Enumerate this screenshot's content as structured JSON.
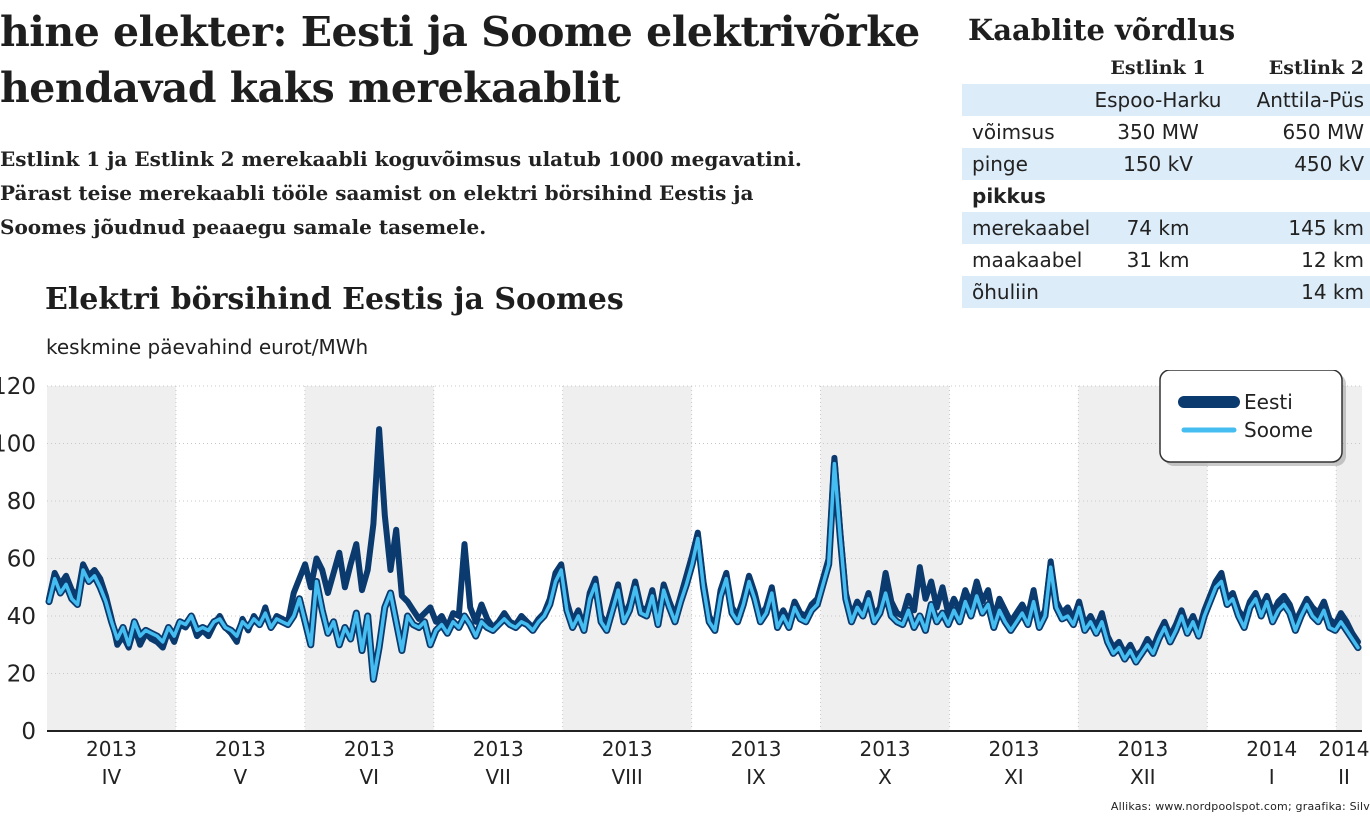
{
  "article": {
    "headline_line1": "hine elekter: Eesti ja Soome elektrivõrke",
    "headline_line2": "hendavad kaks merekaablit",
    "lead_line1": "Estlink 1 ja Estlink 2 merekaabli  koguvõimsus ulatub 1000 megavatini.",
    "lead_line2": "Pärast teise merekaabli tööle saamist on elektri börsihind Eestis ja",
    "lead_line3": "Soomes jõudnud peaaegu samale tasemele."
  },
  "comparison": {
    "title": "Kaablite võrdlus",
    "col_a": "Estlink 1",
    "col_b": "Estlink 2",
    "route_a": "Espoo-Harku",
    "route_b": "Anttila-Püs",
    "rows": [
      {
        "label": "võimsus",
        "a": "350 MW",
        "b": "650 MW"
      },
      {
        "label": "pinge",
        "a": "150 kV",
        "b": "450 kV"
      },
      {
        "label": "pikkus",
        "a": "",
        "b": ""
      },
      {
        "label": "merekaabel",
        "a": "74 km",
        "b": "145 km"
      },
      {
        "label": "maakaabel",
        "a": "31 km",
        "b": "12 km"
      },
      {
        "label": "õhuliin",
        "a": "",
        "b": "14 km"
      }
    ]
  },
  "source": "Allikas: www.nordpoolspot.com; graafika: Silv",
  "colors": {
    "eesti": "#0b3a6e",
    "soome": "#45bdf0",
    "band": "#efefef",
    "outline": "#0b3a6e"
  },
  "chart_data": {
    "type": "line",
    "title": "Elektri börsihind Eestis ja Soomes",
    "ylabel": "keskmine päevahind eurot/MWh",
    "ylim": [
      0,
      120
    ],
    "yticks": [
      "0",
      "20",
      "40",
      "60",
      "80",
      "100",
      "120"
    ],
    "months": [
      {
        "year": "2013",
        "month": "IV"
      },
      {
        "year": "2013",
        "month": "V"
      },
      {
        "year": "2013",
        "month": "VI"
      },
      {
        "year": "2013",
        "month": "VII"
      },
      {
        "year": "2013",
        "month": "VIII"
      },
      {
        "year": "2013",
        "month": "IX"
      },
      {
        "year": "2013",
        "month": "X"
      },
      {
        "year": "2013",
        "month": "XI"
      },
      {
        "year": "2013",
        "month": "XII"
      },
      {
        "year": "2014",
        "month": "I"
      },
      {
        "year": "2014",
        "month": "II"
      }
    ],
    "legend_position": "top-right",
    "grid": true,
    "series": [
      {
        "name": "Eesti",
        "values": [
          46,
          55,
          51,
          54,
          49,
          47,
          58,
          54,
          56,
          53,
          47,
          39,
          30,
          33,
          29,
          36,
          30,
          34,
          32,
          31,
          29,
          35,
          31,
          37,
          36,
          39,
          33,
          35,
          33,
          37,
          40,
          36,
          34,
          31,
          39,
          35,
          40,
          37,
          43,
          36,
          40,
          39,
          38,
          48,
          53,
          58,
          50,
          60,
          56,
          48,
          55,
          62,
          50,
          58,
          65,
          49,
          56,
          72,
          105,
          75,
          56,
          70,
          47,
          45,
          42,
          39,
          41,
          43,
          38,
          40,
          36,
          41,
          40,
          65,
          43,
          38,
          44,
          39,
          36,
          38,
          41,
          38,
          37,
          40,
          38,
          36,
          39,
          41,
          46,
          55,
          58,
          45,
          38,
          42,
          36,
          48,
          53,
          40,
          37,
          44,
          51,
          40,
          44,
          52,
          43,
          42,
          49,
          39,
          51,
          45,
          40,
          47,
          54,
          61,
          69,
          52,
          40,
          36,
          49,
          55,
          43,
          40,
          46,
          54,
          48,
          40,
          43,
          50,
          38,
          42,
          38,
          45,
          41,
          40,
          44,
          46,
          53,
          60,
          95,
          70,
          48,
          40,
          45,
          42,
          48,
          40,
          43,
          55,
          45,
          41,
          40,
          47,
          42,
          57,
          46,
          52,
          43,
          50,
          41,
          46,
          42,
          49,
          44,
          52,
          45,
          49,
          39,
          46,
          42,
          38,
          41,
          44,
          40,
          49,
          38,
          42,
          59,
          45,
          41,
          43,
          39,
          45,
          37,
          40,
          36,
          41,
          33,
          29,
          31,
          27,
          30,
          26,
          28,
          32,
          29,
          34,
          38,
          33,
          37,
          42,
          36,
          40,
          35,
          42,
          47,
          52,
          55,
          46,
          48,
          42,
          39,
          45,
          48,
          43,
          47,
          41,
          45,
          47,
          44,
          38,
          42,
          46,
          43,
          41,
          45,
          39,
          37,
          41,
          38,
          34,
          31
        ]
      },
      {
        "name": "Soome",
        "values": [
          45,
          53,
          48,
          51,
          46,
          44,
          56,
          52,
          54,
          50,
          45,
          38,
          32,
          36,
          30,
          38,
          33,
          35,
          34,
          33,
          31,
          36,
          33,
          38,
          37,
          40,
          35,
          36,
          35,
          38,
          39,
          36,
          35,
          33,
          38,
          36,
          39,
          37,
          41,
          36,
          39,
          38,
          37,
          40,
          46,
          38,
          30,
          52,
          42,
          34,
          38,
          30,
          36,
          32,
          41,
          28,
          40,
          18,
          29,
          43,
          48,
          38,
          28,
          40,
          37,
          36,
          38,
          30,
          35,
          37,
          34,
          38,
          36,
          40,
          37,
          33,
          38,
          36,
          35,
          37,
          39,
          37,
          36,
          38,
          37,
          35,
          38,
          40,
          44,
          52,
          56,
          42,
          36,
          40,
          35,
          46,
          51,
          38,
          35,
          42,
          49,
          38,
          42,
          50,
          41,
          40,
          47,
          37,
          49,
          43,
          38,
          45,
          51,
          58,
          67,
          50,
          38,
          35,
          47,
          53,
          41,
          38,
          44,
          52,
          46,
          38,
          41,
          48,
          36,
          40,
          36,
          43,
          39,
          38,
          42,
          44,
          51,
          58,
          93,
          68,
          46,
          38,
          43,
          40,
          46,
          38,
          41,
          48,
          40,
          38,
          37,
          42,
          36,
          40,
          35,
          44,
          38,
          41,
          37,
          42,
          38,
          45,
          40,
          47,
          41,
          44,
          36,
          42,
          38,
          35,
          38,
          41,
          37,
          45,
          36,
          40,
          57,
          43,
          39,
          40,
          37,
          43,
          35,
          38,
          34,
          38,
          31,
          27,
          29,
          25,
          28,
          24,
          27,
          30,
          27,
          32,
          36,
          31,
          35,
          40,
          34,
          38,
          33,
          40,
          45,
          50,
          52,
          44,
          46,
          40,
          36,
          43,
          46,
          40,
          45,
          38,
          42,
          44,
          41,
          35,
          40,
          44,
          40,
          38,
          42,
          36,
          35,
          38,
          35,
          32,
          29
        ]
      }
    ]
  }
}
